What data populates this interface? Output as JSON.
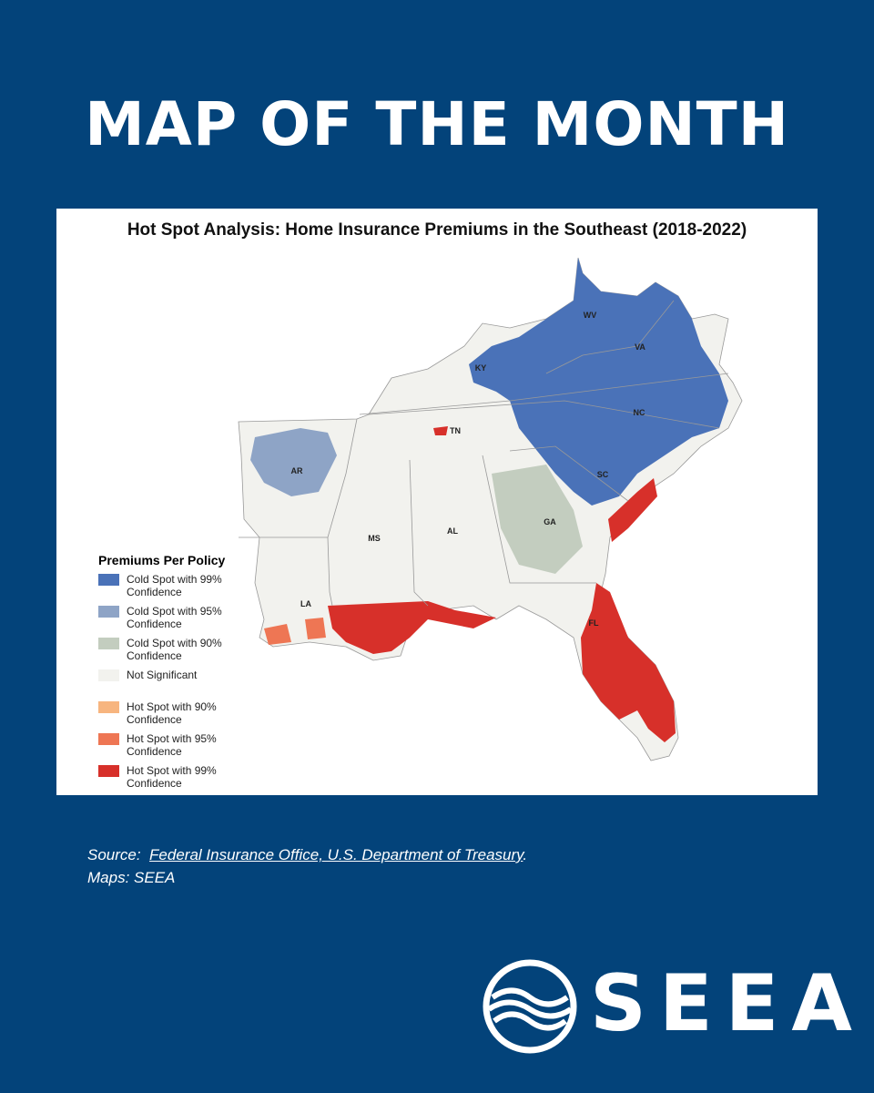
{
  "header": {
    "title": "MAP OF THE MONTH"
  },
  "map": {
    "title": "Hot Spot Analysis: Home Insurance Premiums in the Southeast (2018-2022)",
    "states": [
      "WV",
      "VA",
      "KY",
      "NC",
      "TN",
      "SC",
      "AR",
      "GA",
      "MS",
      "AL",
      "LA",
      "FL"
    ],
    "legend": {
      "title": "Premiums Per Policy",
      "items": [
        {
          "label": "Cold Spot with 99% Confidence",
          "color": "#4a72b8"
        },
        {
          "label": "Cold Spot with 95% Confidence",
          "color": "#8ea4c6"
        },
        {
          "label": "Cold Spot with 90% Confidence",
          "color": "#c3cdbf"
        },
        {
          "label": "Not Significant",
          "color": "#f2f2ee"
        },
        {
          "label": "Hot Spot with 90% Confidence",
          "color": "#f7b57f"
        },
        {
          "label": "Hot Spot with 95% Confidence",
          "color": "#ee7654"
        },
        {
          "label": "Hot Spot with 99% Confidence",
          "color": "#d7302a"
        }
      ]
    }
  },
  "source": {
    "label": "Source:",
    "link": "Federal Insurance Office, U.S. Department of Treasury",
    "end": ".",
    "credit": "Maps: SEEA"
  },
  "logo": {
    "text": "SEEA"
  }
}
